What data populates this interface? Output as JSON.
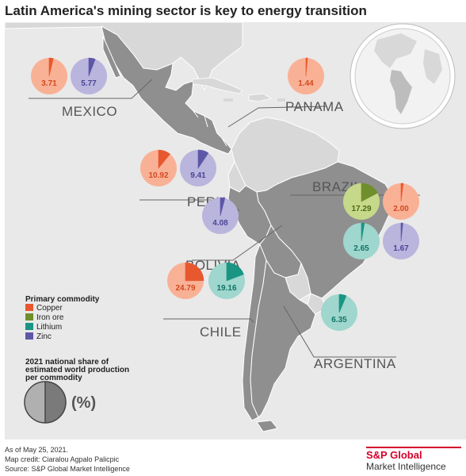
{
  "title": "Latin America's mining sector is key to energy transition",
  "colors": {
    "Copper": {
      "fill": "#f9b196",
      "wedge": "#e8582e",
      "text": "#d14a1e"
    },
    "Iron ore": {
      "fill": "#c6d88a",
      "wedge": "#6f8f2c",
      "text": "#4d6a16"
    },
    "Lithium": {
      "fill": "#9fd6cd",
      "wedge": "#1a9584",
      "text": "#0f7566"
    },
    "Zinc": {
      "fill": "#b9b5dd",
      "wedge": "#5e57a8",
      "text": "#4b4596"
    }
  },
  "countries": [
    {
      "name": "MEXICO",
      "commodities": [
        {
          "commodity": "Copper",
          "share": 3.71,
          "label": "3.71"
        },
        {
          "commodity": "Zinc",
          "share": 5.77,
          "label": "5.77"
        }
      ]
    },
    {
      "name": "PANAMA",
      "commodities": [
        {
          "commodity": "Copper",
          "share": 1.44,
          "label": "1.44"
        }
      ]
    },
    {
      "name": "PERU",
      "commodities": [
        {
          "commodity": "Copper",
          "share": 10.92,
          "label": "10.92"
        },
        {
          "commodity": "Zinc",
          "share": 9.41,
          "label": "9.41"
        }
      ]
    },
    {
      "name": "BRAZIL",
      "commodities": [
        {
          "commodity": "Iron ore",
          "share": 17.29,
          "label": "17.29"
        },
        {
          "commodity": "Copper",
          "share": 2.0,
          "label": "2.00"
        },
        {
          "commodity": "Lithium",
          "share": 2.65,
          "label": "2.65"
        },
        {
          "commodity": "Zinc",
          "share": 1.67,
          "label": "1.67"
        }
      ]
    },
    {
      "name": "BOLIVIA",
      "commodities": [
        {
          "commodity": "Zinc",
          "share": 4.08,
          "label": "4.08"
        }
      ]
    },
    {
      "name": "CHILE",
      "commodities": [
        {
          "commodity": "Copper",
          "share": 24.79,
          "label": "24.79"
        },
        {
          "commodity": "Lithium",
          "share": 19.16,
          "label": "19.16"
        }
      ]
    },
    {
      "name": "ARGENTINA",
      "commodities": [
        {
          "commodity": "Lithium",
          "share": 6.35,
          "label": "6.35"
        }
      ]
    }
  ],
  "legend": {
    "title": "Primary commodity",
    "items": [
      "Copper",
      "Iron ore",
      "Lithium",
      "Zinc"
    ],
    "share_title_lines": [
      "2021 national share of",
      "estimated world production",
      "per commodity"
    ],
    "unit": "(%)"
  },
  "footer": {
    "date": "As of May 25, 2021.",
    "map_credit": "Map credit: Ciaralou Agpalo Palicpic",
    "source": "Source: S&P Global Market Intelligence"
  },
  "brand": {
    "line1": "S&P Global",
    "line2": "Market Intelligence"
  }
}
